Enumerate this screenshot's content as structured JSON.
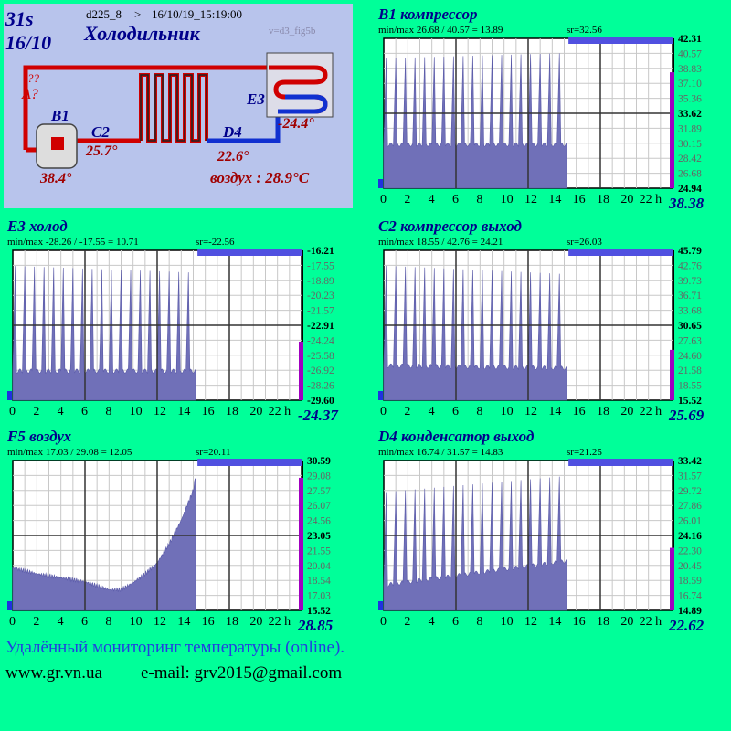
{
  "header": {
    "time": "31s",
    "date": "16/10",
    "device": "d225_8",
    "sep": ">",
    "stamp": "16/10/19_15:19:00",
    "title": "Холодильник",
    "version": "v=d3_fig5b",
    "qmarks": "??",
    "A": "A?",
    "labels": {
      "B1": "B1",
      "C2": "C2",
      "D4": "D4",
      "E3": "E3"
    },
    "vals": {
      "B1": "38.4°",
      "C2": "25.7°",
      "D4": "22.6°",
      "E3": "-24.4°"
    },
    "air": "воздух : 28.9°C"
  },
  "colors": {
    "bg": "#00ff99",
    "fill": "#7070b8",
    "title": "#00008b",
    "current": "#a000c0",
    "topbar": "#5050e0"
  },
  "chart_data": [
    {
      "id": "b1",
      "type": "area",
      "title": "B1 компрессор",
      "minmax": "min/max   26.68 / 40.57 = 13.89",
      "sr": "sr=32.56",
      "ylabels": [
        "42.31",
        "40.57",
        "38.83",
        "37.10",
        "35.36",
        "33.62",
        "31.89",
        "30.15",
        "28.42",
        "26.68",
        "24.94"
      ],
      "current": "38.38",
      "xticks": [
        "0",
        "2",
        "4",
        "6",
        "8",
        "10",
        "12",
        "14",
        "16",
        "18",
        "20",
        "22 h"
      ],
      "ylim": [
        24.94,
        42.31
      ],
      "fill_until_hour": 15.2,
      "pattern": "spikes",
      "base": 30.0,
      "base_end": 30.0,
      "peak_start": 40.0,
      "peak_end": 40.6,
      "cycles": 19
    },
    {
      "id": "e3",
      "type": "area",
      "title": "E3 холод",
      "minmax": "min/max   -28.26 / -17.55 = 10.71",
      "sr": "sr=-22.56",
      "ylabels": [
        "-16.21",
        "-17.55",
        "-18.89",
        "-20.23",
        "-21.57",
        "-22.91",
        "-24.24",
        "-25.58",
        "-26.92",
        "-28.26",
        "-29.60"
      ],
      "current": "-24.37",
      "xticks": [
        "0",
        "2",
        "4",
        "6",
        "8",
        "10",
        "12",
        "14",
        "16",
        "18",
        "20",
        "22 h"
      ],
      "ylim": [
        -29.6,
        -16.21
      ],
      "fill_until_hour": 15.2,
      "pattern": "spikes",
      "base": -27.0,
      "base_end": -27.0,
      "peak_start": -17.6,
      "peak_end": -18.2,
      "cycles": 19
    },
    {
      "id": "c2",
      "type": "area",
      "title": "C2 компрессор выход",
      "minmax": "min/max   18.55 / 42.76 = 24.21",
      "sr": "sr=26.03",
      "ylabels": [
        "45.79",
        "42.76",
        "39.73",
        "36.71",
        "33.68",
        "30.65",
        "27.63",
        "24.60",
        "21.58",
        "18.55",
        "15.52"
      ],
      "current": "25.69",
      "xticks": [
        "0",
        "2",
        "4",
        "6",
        "8",
        "10",
        "12",
        "14",
        "16",
        "18",
        "20",
        "22 h"
      ],
      "ylim": [
        15.52,
        45.79
      ],
      "fill_until_hour": 15.2,
      "pattern": "spikes",
      "base": 22.5,
      "base_end": 22.0,
      "peak_start": 42.7,
      "peak_end": 41.0,
      "cycles": 19
    },
    {
      "id": "f5",
      "type": "area",
      "title": "F5 воздух",
      "minmax": "min/max   17.03 / 29.08 = 12.05",
      "sr": "sr=20.11",
      "ylabels": [
        "30.59",
        "29.08",
        "27.57",
        "26.07",
        "24.56",
        "23.05",
        "21.55",
        "20.04",
        "18.54",
        "17.03",
        "15.52"
      ],
      "current": "28.85",
      "xticks": [
        "0",
        "2",
        "4",
        "6",
        "8",
        "10",
        "12",
        "14",
        "16",
        "18",
        "20",
        "22 h"
      ],
      "ylim": [
        15.52,
        30.59
      ],
      "fill_until_hour": 15.2,
      "pattern": "curve",
      "curve": [
        [
          0,
          19.8
        ],
        [
          2,
          19.2
        ],
        [
          4,
          18.8
        ],
        [
          6,
          18.4
        ],
        [
          8,
          17.6
        ],
        [
          9,
          17.6
        ],
        [
          10,
          18.3
        ],
        [
          11,
          19.2
        ],
        [
          12,
          20.3
        ],
        [
          13,
          22.2
        ],
        [
          14,
          24.6
        ],
        [
          15,
          27.6
        ],
        [
          15.2,
          29.0
        ]
      ]
    },
    {
      "id": "d4",
      "type": "area",
      "title": "D4 конденсатор выход",
      "minmax": "min/max   16.74 / 31.57 = 14.83",
      "sr": "sr=21.25",
      "ylabels": [
        "33.42",
        "31.57",
        "29.72",
        "27.86",
        "26.01",
        "24.16",
        "22.30",
        "20.45",
        "18.59",
        "16.74",
        "14.89"
      ],
      "current": "22.62",
      "xticks": [
        "0",
        "2",
        "4",
        "6",
        "8",
        "10",
        "12",
        "14",
        "16",
        "18",
        "20",
        "22 h"
      ],
      "ylim": [
        14.89,
        33.42
      ],
      "fill_until_hour": 15.2,
      "pattern": "spikes",
      "base": 18.0,
      "base_end": 21.0,
      "peak_start": 29.5,
      "peak_end": 31.5,
      "cycles": 19
    }
  ],
  "footer": {
    "line1": "Удалённый мониторинг температуры (online).",
    "site": "www.gr.vn.ua",
    "email": "e-mail:  grv2015@gmail.com"
  }
}
